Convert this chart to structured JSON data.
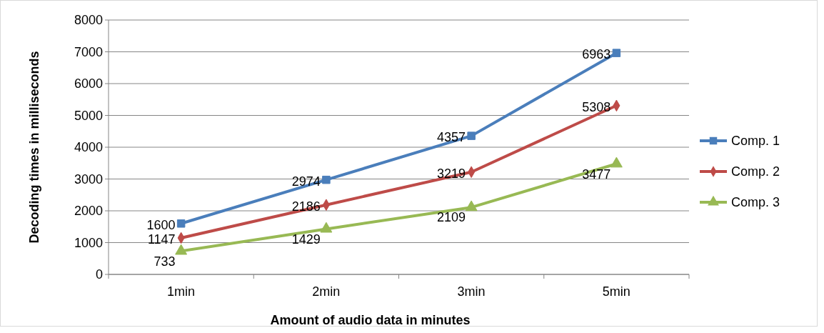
{
  "chart_data": {
    "type": "line",
    "xlabel": "Amount of audio data in minutes",
    "ylabel": "Decoding times in milliseconds",
    "categories": [
      "1min",
      "2min",
      "3min",
      "5min"
    ],
    "series": [
      {
        "name": "Comp. 1",
        "color": "#4a7ebb",
        "marker": "square",
        "values": [
          1600,
          2974,
          4357,
          6963
        ]
      },
      {
        "name": "Comp. 2",
        "color": "#be4b48",
        "marker": "diamond",
        "values": [
          1147,
          2186,
          3219,
          5308
        ]
      },
      {
        "name": "Comp. 3",
        "color": "#98b954",
        "marker": "triangle",
        "values": [
          733,
          1429,
          2109,
          3477
        ]
      }
    ],
    "ylim": [
      0,
      8000
    ],
    "yticks": [
      0,
      1000,
      2000,
      3000,
      4000,
      5000,
      6000,
      7000,
      8000
    ],
    "grid": "y",
    "legend": "right",
    "data_labels": true
  }
}
